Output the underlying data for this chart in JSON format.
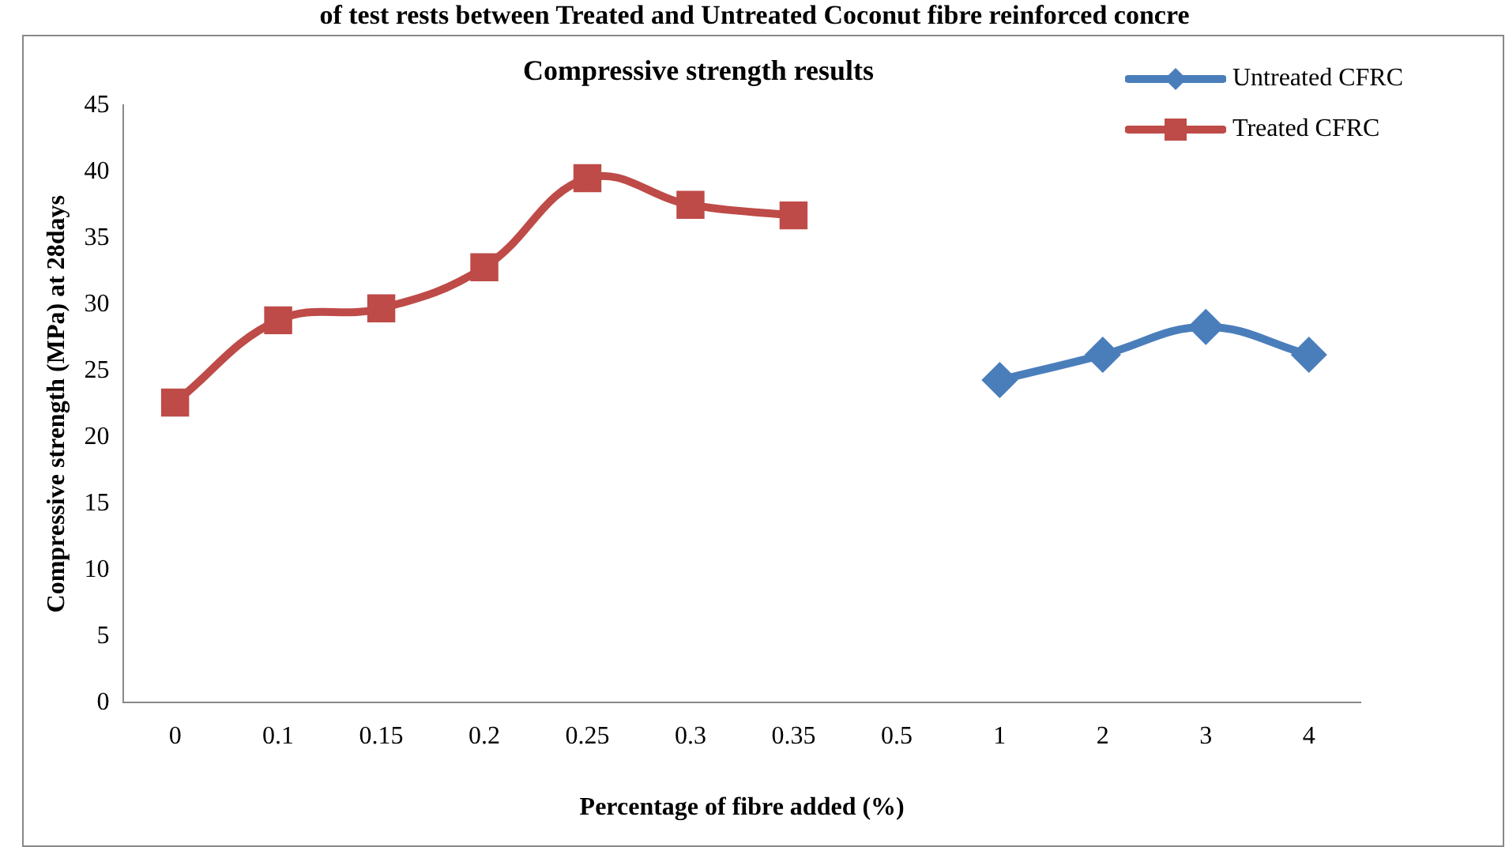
{
  "chart_data": {
    "type": "line",
    "title": "Compressive strength results",
    "xlabel": "Percentage of fibre added (%)",
    "ylabel": "Compressive strength (MPa) at 28days",
    "annotations": [
      "of test rests between Treated and Untreated Coconut fibre reinforced concre"
    ],
    "categories": [
      "0",
      "0.1",
      "0.15",
      "0.2",
      "0.25",
      "0.3",
      "0.35",
      "0.5",
      "1",
      "2",
      "3",
      "4"
    ],
    "series": [
      {
        "name": "Untreated CFRC",
        "color": "#4a7ebb",
        "marker": "diamond",
        "values": [
          null,
          null,
          null,
          null,
          null,
          null,
          null,
          null,
          24.3,
          26.2,
          28.3,
          26.2
        ]
      },
      {
        "name": "Treated CFRC",
        "color": "#be4b48",
        "marker": "square",
        "values": [
          22.6,
          28.8,
          29.7,
          32.8,
          39.5,
          37.5,
          36.7,
          null,
          null,
          null,
          null,
          null
        ]
      }
    ],
    "ylim": [
      0,
      45
    ],
    "yticks": [
      0,
      5,
      10,
      15,
      20,
      25,
      30,
      35,
      40,
      45
    ],
    "grid": false,
    "legend": "top right"
  }
}
